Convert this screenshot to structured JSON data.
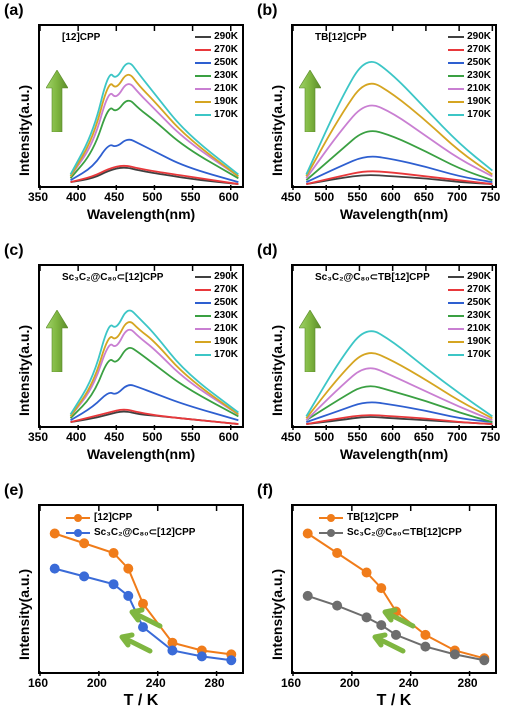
{
  "colors": {
    "t290": "#404040",
    "t270": "#e8383b",
    "t250": "#2e5fd0",
    "t230": "#3aa042",
    "t210": "#c97fd2",
    "t190": "#d5a521",
    "t170": "#3cc6c6",
    "marker_orange": "#f07c1a",
    "marker_blue": "#3a6bd8",
    "marker_gray": "#6d6d6d",
    "arrow_fill": "#7fb640",
    "arrow_stroke": "#5a8a2a"
  },
  "legend_temps": [
    "290K",
    "270K",
    "250K",
    "230K",
    "210K",
    "190K",
    "170K"
  ],
  "panel_a": {
    "label": "(a)",
    "title": "[12]CPP",
    "xlim": [
      350,
      620
    ],
    "xticks": [
      350,
      400,
      450,
      500,
      550,
      600
    ],
    "xlabel": "Wavelength(nm)",
    "ylabel": "Intensity(a.u.)",
    "curves": [
      {
        "k": "t290",
        "pts": [
          [
            390,
            2
          ],
          [
            420,
            4
          ],
          [
            440,
            8
          ],
          [
            460,
            10
          ],
          [
            480,
            8
          ],
          [
            510,
            6
          ],
          [
            560,
            3
          ],
          [
            610,
            1
          ]
        ]
      },
      {
        "k": "t270",
        "pts": [
          [
            390,
            2
          ],
          [
            420,
            5
          ],
          [
            440,
            9
          ],
          [
            460,
            11
          ],
          [
            480,
            9
          ],
          [
            510,
            7
          ],
          [
            560,
            4
          ],
          [
            610,
            1
          ]
        ]
      },
      {
        "k": "t250",
        "pts": [
          [
            390,
            3
          ],
          [
            420,
            10
          ],
          [
            440,
            22
          ],
          [
            450,
            20
          ],
          [
            465,
            25
          ],
          [
            480,
            22
          ],
          [
            500,
            18
          ],
          [
            540,
            10
          ],
          [
            610,
            2
          ]
        ]
      },
      {
        "k": "t230",
        "pts": [
          [
            390,
            4
          ],
          [
            420,
            18
          ],
          [
            440,
            42
          ],
          [
            450,
            38
          ],
          [
            465,
            46
          ],
          [
            480,
            40
          ],
          [
            500,
            34
          ],
          [
            540,
            20
          ],
          [
            610,
            4
          ]
        ]
      },
      {
        "k": "t210",
        "pts": [
          [
            390,
            5
          ],
          [
            420,
            22
          ],
          [
            440,
            50
          ],
          [
            450,
            45
          ],
          [
            465,
            55
          ],
          [
            480,
            48
          ],
          [
            500,
            40
          ],
          [
            540,
            24
          ],
          [
            610,
            5
          ]
        ]
      },
      {
        "k": "t190",
        "pts": [
          [
            390,
            5
          ],
          [
            420,
            25
          ],
          [
            440,
            55
          ],
          [
            450,
            50
          ],
          [
            465,
            60
          ],
          [
            480,
            52
          ],
          [
            500,
            44
          ],
          [
            540,
            26
          ],
          [
            610,
            5
          ]
        ]
      },
      {
        "k": "t170",
        "pts": [
          [
            390,
            6
          ],
          [
            420,
            28
          ],
          [
            440,
            60
          ],
          [
            450,
            55
          ],
          [
            465,
            66
          ],
          [
            480,
            58
          ],
          [
            500,
            48
          ],
          [
            540,
            28
          ],
          [
            610,
            6
          ]
        ]
      }
    ],
    "ymax": 80
  },
  "panel_b": {
    "label": "(b)",
    "title": "TB[12]CPP",
    "xlim": [
      450,
      760
    ],
    "xticks": [
      450,
      500,
      550,
      600,
      650,
      700,
      750
    ],
    "xlabel": "Wavelength(nm)",
    "ylabel": "Intensity(a.u.)",
    "curves": [
      {
        "k": "t290",
        "pts": [
          [
            470,
            1
          ],
          [
            520,
            4
          ],
          [
            560,
            6
          ],
          [
            600,
            5
          ],
          [
            650,
            4
          ],
          [
            700,
            2
          ],
          [
            750,
            1
          ]
        ]
      },
      {
        "k": "t270",
        "pts": [
          [
            470,
            1
          ],
          [
            520,
            5
          ],
          [
            560,
            8
          ],
          [
            600,
            7
          ],
          [
            650,
            5
          ],
          [
            700,
            3
          ],
          [
            750,
            1
          ]
        ]
      },
      {
        "k": "t250",
        "pts": [
          [
            470,
            2
          ],
          [
            520,
            10
          ],
          [
            560,
            16
          ],
          [
            600,
            14
          ],
          [
            650,
            10
          ],
          [
            700,
            5
          ],
          [
            750,
            2
          ]
        ]
      },
      {
        "k": "t230",
        "pts": [
          [
            470,
            3
          ],
          [
            520,
            18
          ],
          [
            560,
            30
          ],
          [
            600,
            26
          ],
          [
            650,
            18
          ],
          [
            700,
            9
          ],
          [
            750,
            3
          ]
        ]
      },
      {
        "k": "t210",
        "pts": [
          [
            470,
            4
          ],
          [
            520,
            28
          ],
          [
            560,
            44
          ],
          [
            600,
            38
          ],
          [
            650,
            26
          ],
          [
            700,
            14
          ],
          [
            750,
            5
          ]
        ]
      },
      {
        "k": "t190",
        "pts": [
          [
            470,
            5
          ],
          [
            520,
            36
          ],
          [
            560,
            56
          ],
          [
            600,
            48
          ],
          [
            650,
            34
          ],
          [
            700,
            18
          ],
          [
            750,
            6
          ]
        ]
      },
      {
        "k": "t170",
        "pts": [
          [
            470,
            6
          ],
          [
            520,
            44
          ],
          [
            560,
            68
          ],
          [
            600,
            58
          ],
          [
            650,
            40
          ],
          [
            700,
            22
          ],
          [
            750,
            8
          ]
        ]
      }
    ],
    "ymax": 80
  },
  "panel_c": {
    "label": "(c)",
    "title": "Sc₃C₂@C₈₀⊂[12]CPP",
    "xlim": [
      350,
      620
    ],
    "xticks": [
      350,
      400,
      450,
      500,
      550,
      600
    ],
    "xlabel": "Wavelength(nm)",
    "ylabel": "Intensity(a.u.)",
    "curves": [
      {
        "k": "t290",
        "pts": [
          [
            390,
            2
          ],
          [
            420,
            4
          ],
          [
            440,
            6
          ],
          [
            460,
            8
          ],
          [
            480,
            6
          ],
          [
            510,
            5
          ],
          [
            560,
            3
          ],
          [
            610,
            1
          ]
        ]
      },
      {
        "k": "t270",
        "pts": [
          [
            390,
            2
          ],
          [
            420,
            5
          ],
          [
            440,
            7
          ],
          [
            460,
            9
          ],
          [
            480,
            7
          ],
          [
            510,
            5
          ],
          [
            560,
            3
          ],
          [
            610,
            1
          ]
        ]
      },
      {
        "k": "t250",
        "pts": [
          [
            390,
            3
          ],
          [
            420,
            10
          ],
          [
            440,
            18
          ],
          [
            450,
            16
          ],
          [
            465,
            22
          ],
          [
            480,
            20
          ],
          [
            500,
            17
          ],
          [
            540,
            11
          ],
          [
            610,
            3
          ]
        ]
      },
      {
        "k": "t230",
        "pts": [
          [
            390,
            4
          ],
          [
            420,
            16
          ],
          [
            440,
            36
          ],
          [
            450,
            32
          ],
          [
            465,
            42
          ],
          [
            480,
            38
          ],
          [
            500,
            32
          ],
          [
            540,
            20
          ],
          [
            610,
            5
          ]
        ]
      },
      {
        "k": "t210",
        "pts": [
          [
            390,
            5
          ],
          [
            420,
            20
          ],
          [
            440,
            44
          ],
          [
            450,
            40
          ],
          [
            465,
            52
          ],
          [
            480,
            46
          ],
          [
            500,
            40
          ],
          [
            540,
            24
          ],
          [
            610,
            6
          ]
        ]
      },
      {
        "k": "t190",
        "pts": [
          [
            390,
            5
          ],
          [
            420,
            22
          ],
          [
            440,
            48
          ],
          [
            450,
            44
          ],
          [
            465,
            56
          ],
          [
            480,
            50
          ],
          [
            500,
            44
          ],
          [
            540,
            26
          ],
          [
            610,
            6
          ]
        ]
      },
      {
        "k": "t170",
        "pts": [
          [
            390,
            6
          ],
          [
            420,
            25
          ],
          [
            440,
            54
          ],
          [
            450,
            50
          ],
          [
            465,
            62
          ],
          [
            480,
            56
          ],
          [
            500,
            48
          ],
          [
            540,
            28
          ],
          [
            610,
            7
          ]
        ]
      }
    ],
    "ymax": 80
  },
  "panel_d": {
    "label": "(d)",
    "title": "Sc₃C₂@C₈₀⊂TB[12]CPP",
    "xlim": [
      450,
      760
    ],
    "xticks": [
      450,
      500,
      550,
      600,
      650,
      700,
      750
    ],
    "xlabel": "Wavelength(nm)",
    "ylabel": "Intensity(a.u.)",
    "curves": [
      {
        "k": "t290",
        "pts": [
          [
            470,
            1
          ],
          [
            520,
            3
          ],
          [
            560,
            5
          ],
          [
            600,
            4
          ],
          [
            650,
            3
          ],
          [
            700,
            2
          ],
          [
            750,
            1
          ]
        ]
      },
      {
        "k": "t270",
        "pts": [
          [
            470,
            1
          ],
          [
            520,
            4
          ],
          [
            560,
            6
          ],
          [
            600,
            5
          ],
          [
            650,
            4
          ],
          [
            700,
            2
          ],
          [
            750,
            1
          ]
        ]
      },
      {
        "k": "t250",
        "pts": [
          [
            470,
            2
          ],
          [
            520,
            8
          ],
          [
            560,
            13
          ],
          [
            600,
            11
          ],
          [
            650,
            8
          ],
          [
            700,
            4
          ],
          [
            750,
            2
          ]
        ]
      },
      {
        "k": "t230",
        "pts": [
          [
            470,
            3
          ],
          [
            520,
            14
          ],
          [
            560,
            22
          ],
          [
            600,
            18
          ],
          [
            650,
            13
          ],
          [
            700,
            7
          ],
          [
            750,
            2
          ]
        ]
      },
      {
        "k": "t210",
        "pts": [
          [
            470,
            3
          ],
          [
            520,
            20
          ],
          [
            560,
            32
          ],
          [
            600,
            26
          ],
          [
            650,
            18
          ],
          [
            700,
            10
          ],
          [
            750,
            3
          ]
        ]
      },
      {
        "k": "t190",
        "pts": [
          [
            470,
            4
          ],
          [
            520,
            26
          ],
          [
            560,
            40
          ],
          [
            600,
            34
          ],
          [
            650,
            24
          ],
          [
            700,
            13
          ],
          [
            750,
            4
          ]
        ]
      },
      {
        "k": "t170",
        "pts": [
          [
            470,
            5
          ],
          [
            520,
            34
          ],
          [
            560,
            52
          ],
          [
            600,
            44
          ],
          [
            650,
            30
          ],
          [
            700,
            17
          ],
          [
            750,
            5
          ]
        ]
      }
    ],
    "ymax": 80
  },
  "panel_e": {
    "label": "(e)",
    "xlim": [
      160,
      300
    ],
    "xticks": [
      160,
      200,
      240,
      280
    ],
    "xlabel": "T / K",
    "ylabel": "Intensity(a.u.)",
    "series": [
      {
        "name": "[12]CPP",
        "color": "marker_orange",
        "pts": [
          [
            170,
            70
          ],
          [
            190,
            65
          ],
          [
            210,
            60
          ],
          [
            220,
            52
          ],
          [
            230,
            34
          ],
          [
            250,
            14
          ],
          [
            270,
            10
          ],
          [
            290,
            8
          ]
        ]
      },
      {
        "name": "Sc₃C₂@C₈₀⊂[12]CPP",
        "color": "marker_blue",
        "pts": [
          [
            170,
            52
          ],
          [
            190,
            48
          ],
          [
            210,
            44
          ],
          [
            220,
            38
          ],
          [
            230,
            22
          ],
          [
            250,
            10
          ],
          [
            270,
            7
          ],
          [
            290,
            5
          ]
        ]
      }
    ],
    "ymax": 80
  },
  "panel_f": {
    "label": "(f)",
    "xlim": [
      160,
      300
    ],
    "xticks": [
      160,
      200,
      240,
      280
    ],
    "xlabel": "T / K",
    "ylabel": "Intensity(a.u.)",
    "series": [
      {
        "name": "TB[12]CPP",
        "color": "marker_orange",
        "pts": [
          [
            170,
            70
          ],
          [
            190,
            60
          ],
          [
            210,
            50
          ],
          [
            220,
            42
          ],
          [
            230,
            30
          ],
          [
            250,
            18
          ],
          [
            270,
            10
          ],
          [
            290,
            6
          ]
        ]
      },
      {
        "name": "Sc₃C₂@C₈₀⊂TB[12]CPP",
        "color": "marker_gray",
        "pts": [
          [
            170,
            38
          ],
          [
            190,
            33
          ],
          [
            210,
            27
          ],
          [
            220,
            23
          ],
          [
            230,
            18
          ],
          [
            250,
            12
          ],
          [
            270,
            8
          ],
          [
            290,
            5
          ]
        ]
      }
    ],
    "ymax": 80
  }
}
